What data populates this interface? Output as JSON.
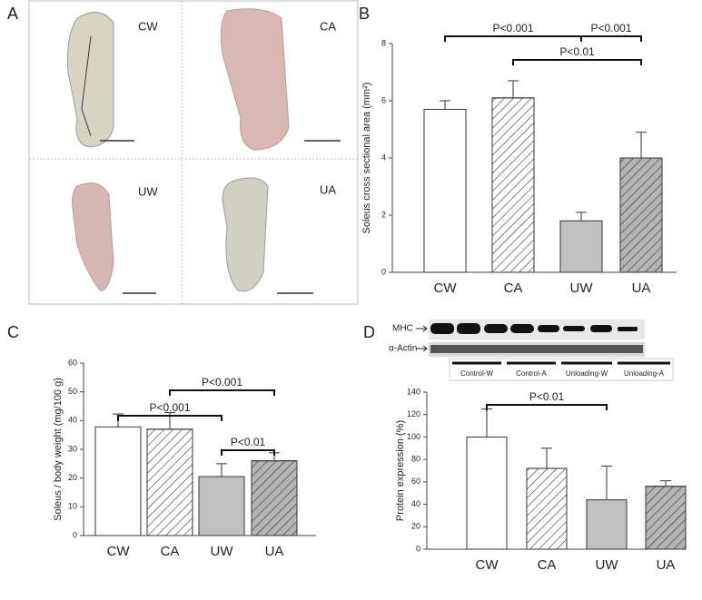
{
  "panel_a": {
    "label": "A",
    "images": [
      "CW",
      "CA",
      "UW",
      "UA"
    ]
  },
  "blot": {
    "bands": [
      "MHC",
      "α-Actin"
    ],
    "groups": [
      "Control-W",
      "Control-A",
      "Unloading-W",
      "Unloading-A"
    ]
  },
  "chart_data": [
    {
      "type": "bar",
      "panel": "B",
      "ylabel": "Soleus cross sectional area (mm²)",
      "categories": [
        "CW",
        "CA",
        "UW",
        "UA"
      ],
      "values": [
        5.7,
        6.1,
        1.8,
        4.0
      ],
      "errors": [
        0.3,
        0.6,
        0.3,
        0.9
      ],
      "colors": [
        "#ffffff",
        "#ffffff",
        "#c0c0c0",
        "#b4b4b4"
      ],
      "hatched": [
        false,
        true,
        false,
        true
      ],
      "ylim": [
        0,
        8
      ],
      "yticks": [
        0,
        2,
        4,
        6,
        8
      ],
      "annotations": [
        {
          "text": "P<0.001",
          "between": [
            "CW",
            "UW"
          ]
        },
        {
          "text": "P<0.001",
          "between": [
            "UW",
            "UA"
          ]
        },
        {
          "text": "P<0.01",
          "between": [
            "CA",
            "UA"
          ]
        }
      ]
    },
    {
      "type": "bar",
      "panel": "C",
      "ylabel": "Soleus / body weight (mg/100 g)",
      "categories": [
        "CW",
        "CA",
        "UW",
        "UA"
      ],
      "values": [
        37.8,
        37,
        20.5,
        26
      ],
      "errors": [
        4.5,
        5.8,
        4.5,
        2.8
      ],
      "colors": [
        "#ffffff",
        "#ffffff",
        "#c0c0c0",
        "#b4b4b4"
      ],
      "hatched": [
        false,
        true,
        false,
        true
      ],
      "ylim": [
        0,
        60
      ],
      "yticks": [
        0,
        10,
        20,
        30,
        40,
        50,
        60
      ],
      "annotations": [
        {
          "text": "P<0.001",
          "between": [
            "CA",
            "UA"
          ]
        },
        {
          "text": "P<0.001",
          "between": [
            "CW",
            "UW"
          ]
        },
        {
          "text": "P<0.01",
          "between": [
            "UW",
            "UA"
          ]
        }
      ]
    },
    {
      "type": "bar",
      "panel": "D",
      "ylabel": "Protein expression (%)",
      "categories": [
        "CW",
        "CA",
        "UW",
        "UA"
      ],
      "values": [
        100,
        72,
        44,
        56
      ],
      "errors": [
        25,
        18,
        30,
        5
      ],
      "colors": [
        "#ffffff",
        "#ffffff",
        "#c0c0c0",
        "#b4b4b4"
      ],
      "hatched": [
        false,
        true,
        false,
        true
      ],
      "ylim": [
        0,
        140
      ],
      "yticks": [
        0,
        20,
        40,
        60,
        80,
        100,
        120,
        140
      ],
      "annotations": [
        {
          "text": "P<0.01",
          "between": [
            "CW",
            "UW"
          ]
        }
      ]
    }
  ]
}
